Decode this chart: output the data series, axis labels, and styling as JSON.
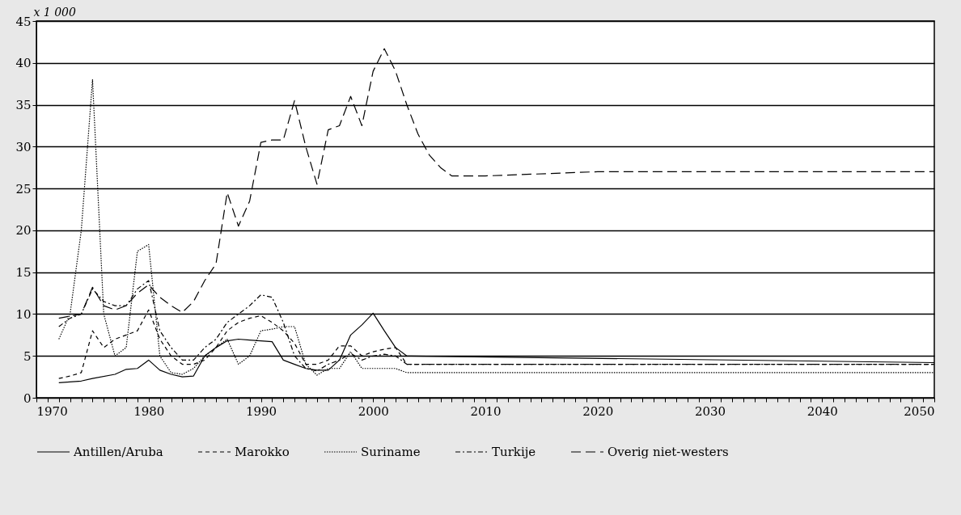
{
  "chart_data": {
    "type": "line",
    "ylabel": "x 1 000",
    "xlim": [
      1970,
      2050
    ],
    "ylim": [
      0,
      45
    ],
    "yticks": [
      0,
      5,
      10,
      15,
      20,
      25,
      30,
      35,
      40,
      45
    ],
    "xticks": [
      1970,
      {
        "value": 1971,
        "label": null
      },
      {
        "value": 1972,
        "label": null
      },
      {
        "value": 1973,
        "label": null
      },
      {
        "value": 1974,
        "label": null
      },
      {
        "value": 1975,
        "label": null
      },
      {
        "value": 1976,
        "label": null
      },
      {
        "value": 1977,
        "label": null
      },
      {
        "value": 1978,
        "label": null
      },
      {
        "value": 1979,
        "label": null
      },
      1980,
      {
        "value": 1981,
        "label": null
      },
      {
        "value": 1982,
        "label": null
      },
      {
        "value": 1983,
        "label": null
      },
      {
        "value": 1984,
        "label": null
      },
      {
        "value": 1985,
        "label": null
      },
      {
        "value": 1986,
        "label": null
      },
      {
        "value": 1987,
        "label": null
      },
      {
        "value": 1988,
        "label": null
      },
      {
        "value": 1989,
        "label": null
      },
      1990,
      {
        "value": 1991,
        "label": null
      },
      {
        "value": 1992,
        "label": null
      },
      {
        "value": 1993,
        "label": null
      },
      {
        "value": 1994,
        "label": null
      },
      {
        "value": 1995,
        "label": null
      },
      {
        "value": 1996,
        "label": null
      },
      {
        "value": 1997,
        "label": null
      },
      {
        "value": 1998,
        "label": null
      },
      {
        "value": 1999,
        "label": null
      },
      2000,
      {
        "value": 2001,
        "label": null
      },
      {
        "value": 2002,
        "label": null
      },
      {
        "value": 2003,
        "label": null
      },
      {
        "value": 2004,
        "label": null
      },
      {
        "value": 2005,
        "label": null
      },
      {
        "value": 2006,
        "label": null
      },
      {
        "value": 2007,
        "label": null
      },
      {
        "value": 2008,
        "label": null
      },
      {
        "value": 2009,
        "label": null
      },
      2010,
      {
        "value": 2011,
        "label": null
      },
      {
        "value": 2012,
        "label": null
      },
      {
        "value": 2013,
        "label": null
      },
      {
        "value": 2014,
        "label": null
      },
      {
        "value": 2015,
        "label": null
      },
      {
        "value": 2016,
        "label": null
      },
      {
        "value": 2017,
        "label": null
      },
      {
        "value": 2018,
        "label": null
      },
      {
        "value": 2019,
        "label": null
      },
      2020,
      {
        "value": 2021,
        "label": null
      },
      {
        "value": 2022,
        "label": null
      },
      {
        "value": 2023,
        "label": null
      },
      {
        "value": 2024,
        "label": null
      },
      {
        "value": 2025,
        "label": null
      },
      {
        "value": 2026,
        "label": null
      },
      {
        "value": 2027,
        "label": null
      },
      {
        "value": 2028,
        "label": null
      },
      {
        "value": 2029,
        "label": null
      },
      2030,
      {
        "value": 2031,
        "label": null
      },
      {
        "value": 2032,
        "label": null
      },
      {
        "value": 2033,
        "label": null
      },
      {
        "value": 2034,
        "label": null
      },
      {
        "value": 2035,
        "label": null
      },
      {
        "value": 2036,
        "label": null
      },
      {
        "value": 2037,
        "label": null
      },
      {
        "value": 2038,
        "label": null
      },
      {
        "value": 2039,
        "label": null
      },
      2040,
      {
        "value": 2041,
        "label": null
      },
      {
        "value": 2042,
        "label": null
      },
      {
        "value": 2043,
        "label": null
      },
      {
        "value": 2044,
        "label": null
      },
      {
        "value": 2045,
        "label": null
      },
      {
        "value": 2046,
        "label": null
      },
      {
        "value": 2047,
        "label": null
      },
      {
        "value": 2048,
        "label": null
      },
      {
        "value": 2049,
        "label": null
      },
      2050
    ],
    "grid": "y",
    "legend": "bottom",
    "marker": "none",
    "series": [
      {
        "name": "Antillen/Aruba",
        "color": "#000000",
        "line_style": "solid",
        "x": [
          1972,
          1974,
          1975,
          1977,
          1978,
          1979,
          1980,
          1981,
          1982,
          1983,
          1984,
          1985,
          1986,
          1987,
          1988,
          1989,
          1990,
          1991,
          1992,
          1993,
          1994,
          1995,
          1996,
          1997,
          1998,
          1999,
          2000,
          2001,
          2002,
          2003,
          2050
        ],
        "values": [
          1.8,
          2.0,
          2.3,
          2.8,
          3.4,
          3.5,
          4.5,
          3.3,
          2.8,
          2.5,
          2.6,
          5.0,
          6.0,
          6.8,
          7.0,
          6.9,
          6.8,
          6.7,
          4.5,
          4.0,
          3.5,
          3.3,
          3.3,
          4.5,
          7.5,
          8.7,
          10.1,
          8.0,
          6.0,
          5.0,
          4.2
        ]
      },
      {
        "name": "Marokko",
        "color": "#000000",
        "line_style": "dashed",
        "x": [
          1972,
          1973,
          1974,
          1975,
          1976,
          1977,
          1978,
          1979,
          1980,
          1981,
          1982,
          1983,
          1984,
          1985,
          1986,
          1987,
          1988,
          1989,
          1990,
          1991,
          1992,
          1993,
          1994,
          1995,
          1996,
          1997,
          1998,
          1999,
          2000,
          2001,
          2002,
          2003,
          2050
        ],
        "values": [
          2.3,
          2.6,
          3.0,
          8.0,
          6.0,
          7.0,
          7.5,
          8.0,
          10.5,
          7.0,
          5.0,
          4.0,
          4.0,
          4.5,
          6.0,
          8.0,
          9.0,
          9.5,
          9.8,
          9.0,
          8.0,
          6.5,
          4.0,
          4.0,
          4.5,
          6.2,
          6.2,
          5.0,
          5.5,
          5.8,
          6.0,
          4.0,
          4.0
        ]
      },
      {
        "name": "Suriname",
        "color": "#000000",
        "line_style": "dotted",
        "x": [
          1972,
          1973,
          1974,
          1975,
          1976,
          1977,
          1978,
          1979,
          1980,
          1981,
          1982,
          1983,
          1984,
          1985,
          1986,
          1987,
          1988,
          1989,
          1990,
          1991,
          1992,
          1993,
          1994,
          1995,
          1996,
          1997,
          1998,
          1999,
          2000,
          2001,
          2002,
          2003,
          2050
        ],
        "values": [
          7.0,
          10.0,
          20.0,
          38.0,
          10.0,
          5.0,
          6.0,
          17.5,
          18.3,
          5.0,
          3.0,
          2.8,
          3.5,
          5.0,
          6.0,
          7.0,
          4.0,
          5.0,
          8.0,
          8.2,
          8.5,
          8.5,
          4.0,
          2.7,
          3.5,
          3.5,
          5.5,
          3.5,
          3.5,
          3.5,
          3.5,
          3.0,
          3.0
        ]
      },
      {
        "name": "Turkije",
        "color": "#000000",
        "line_style": "dashed",
        "x": [
          1972,
          1973,
          1974,
          1975,
          1976,
          1977,
          1978,
          1979,
          1980,
          1981,
          1982,
          1983,
          1984,
          1985,
          1986,
          1987,
          1988,
          1989,
          1990,
          1991,
          1992,
          1993,
          1994,
          1995,
          1996,
          1997,
          1998,
          1999,
          2000,
          2001,
          2002,
          2003,
          2050
        ],
        "values": [
          8.5,
          9.5,
          10.0,
          13.0,
          11.5,
          11.0,
          11.0,
          13.0,
          14.0,
          8.0,
          6.0,
          4.5,
          4.5,
          6.0,
          7.0,
          9.0,
          10.0,
          11.0,
          12.3,
          12.0,
          9.0,
          5.0,
          3.5,
          3.2,
          4.0,
          4.5,
          5.3,
          4.5,
          5.0,
          5.2,
          5.0,
          4.0,
          4.0
        ]
      },
      {
        "name": "Overig niet-westers",
        "color": "#000000",
        "line_style": "dashed",
        "x": [
          1972,
          1974,
          1975,
          1976,
          1977,
          1978,
          1979,
          1980,
          1981,
          1982,
          1983,
          1984,
          1985,
          1986,
          1987,
          1988,
          1989,
          1990,
          1991,
          1992,
          1993,
          1994,
          1995,
          1996,
          1997,
          1998,
          1999,
          2000,
          2001,
          2002,
          2003,
          2004,
          2005,
          2006,
          2007,
          2010,
          2020,
          2050
        ],
        "values": [
          9.5,
          10.0,
          13.2,
          11.0,
          10.5,
          11.0,
          12.5,
          13.5,
          12.0,
          11.0,
          10.2,
          11.5,
          14.0,
          16.0,
          24.5,
          20.5,
          23.5,
          30.5,
          30.8,
          30.8,
          35.5,
          30.0,
          25.5,
          32.0,
          32.5,
          36.0,
          32.5,
          39.0,
          41.7,
          39.0,
          35.0,
          31.5,
          29.0,
          27.5,
          26.5,
          26.5,
          27.0,
          27.0
        ]
      }
    ]
  }
}
